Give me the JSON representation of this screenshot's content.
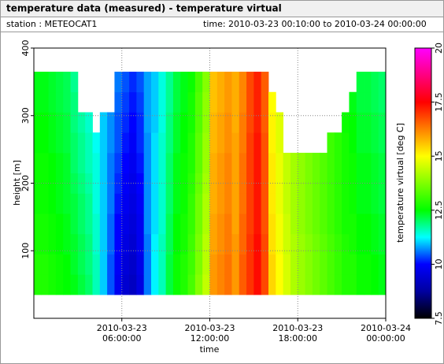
{
  "chart_data": {
    "type": "heatmap",
    "title": "temperature data (measured) - temperature virtual",
    "station": "station : METEOCAT1",
    "time_range": "time: 2010-03-23 00:10:00 to 2010-03-24 00:00:00",
    "x_label": "time",
    "y_label": "height [m]",
    "colorbar_label": "temperature virtual [deg C]",
    "xlim": [
      "2010-03-23 00:00:00",
      "2010-03-24 00:00:00"
    ],
    "xticks": [
      "2010-03-23 06:00:00",
      "2010-03-23 12:00:00",
      "2010-03-23 18:00:00",
      "2010-03-24 00:00:00"
    ],
    "ylim": [
      0,
      400
    ],
    "yticks": [
      100,
      200,
      300,
      400
    ],
    "grid": true,
    "clim": [
      7.5,
      20
    ],
    "cticks": [
      7.5,
      10,
      12.5,
      15,
      17.5,
      20
    ],
    "colorscale": [
      [
        7.5,
        "#000000"
      ],
      [
        8.75,
        "#0000a0"
      ],
      [
        10,
        "#0000ff"
      ],
      [
        11.25,
        "#00ffff"
      ],
      [
        12.5,
        "#00ff00"
      ],
      [
        15,
        "#ffff00"
      ],
      [
        16.25,
        "#ff8000"
      ],
      [
        17.5,
        "#ff0000"
      ],
      [
        20,
        "#ff00ff"
      ]
    ],
    "x": [
      "2010-03-23 00:15:00",
      "2010-03-23 00:45:00",
      "2010-03-23 01:15:00",
      "2010-03-23 01:45:00",
      "2010-03-23 02:15:00",
      "2010-03-23 02:45:00",
      "2010-03-23 03:15:00",
      "2010-03-23 03:45:00",
      "2010-03-23 04:15:00",
      "2010-03-23 04:45:00",
      "2010-03-23 05:15:00",
      "2010-03-23 05:45:00",
      "2010-03-23 06:15:00",
      "2010-03-23 06:45:00",
      "2010-03-23 07:15:00",
      "2010-03-23 07:45:00",
      "2010-03-23 08:15:00",
      "2010-03-23 08:45:00",
      "2010-03-23 09:15:00",
      "2010-03-23 09:45:00",
      "2010-03-23 10:15:00",
      "2010-03-23 10:45:00",
      "2010-03-23 11:15:00",
      "2010-03-23 11:45:00",
      "2010-03-23 12:15:00",
      "2010-03-23 12:45:00",
      "2010-03-23 13:15:00",
      "2010-03-23 13:45:00",
      "2010-03-23 14:15:00",
      "2010-03-23 14:45:00",
      "2010-03-23 15:15:00",
      "2010-03-23 15:45:00",
      "2010-03-23 16:15:00",
      "2010-03-23 16:45:00",
      "2010-03-23 17:15:00",
      "2010-03-23 17:45:00",
      "2010-03-23 18:15:00",
      "2010-03-23 18:45:00",
      "2010-03-23 19:15:00",
      "2010-03-23 19:45:00",
      "2010-03-23 20:15:00",
      "2010-03-23 20:45:00",
      "2010-03-23 21:15:00",
      "2010-03-23 21:45:00",
      "2010-03-23 22:15:00",
      "2010-03-23 22:45:00",
      "2010-03-23 23:15:00",
      "2010-03-23 23:45:00"
    ],
    "y": [
      50,
      80,
      110,
      140,
      170,
      200,
      230,
      260,
      290,
      320,
      350
    ],
    "z": [
      [
        12.8,
        12.8,
        12.7,
        12.7,
        12.6,
        12.6,
        12.6,
        12.5,
        12.5,
        12.4,
        12.4
      ],
      [
        12.8,
        12.8,
        12.7,
        12.7,
        12.6,
        12.6,
        12.6,
        12.5,
        12.5,
        12.4,
        12.4
      ],
      [
        12.7,
        12.7,
        12.6,
        12.6,
        12.5,
        12.5,
        12.5,
        12.4,
        12.4,
        12.3,
        12.3
      ],
      [
        12.6,
        12.6,
        12.5,
        12.5,
        12.4,
        12.4,
        12.4,
        12.3,
        12.3,
        12.2,
        12.2
      ],
      [
        12.5,
        12.5,
        12.4,
        12.4,
        12.3,
        12.3,
        12.3,
        12.2,
        12.2,
        12.1,
        12.1
      ],
      [
        12.4,
        12.3,
        12.3,
        12.2,
        12.2,
        12.1,
        12.0,
        12.0,
        11.9,
        11.9,
        11.8
      ],
      [
        12.2,
        12.1,
        12.1,
        12.0,
        12.0,
        11.9,
        11.8,
        11.8,
        11.7,
        null,
        null
      ],
      [
        12.0,
        11.9,
        11.9,
        11.8,
        11.8,
        11.7,
        11.6,
        11.6,
        11.5,
        null,
        null
      ],
      [
        11.6,
        11.6,
        11.5,
        11.5,
        11.4,
        11.4,
        11.4,
        11.3,
        null,
        null,
        null
      ],
      [
        11.0,
        11.0,
        11.0,
        11.0,
        11.0,
        11.0,
        11.0,
        11.0,
        11.0,
        null,
        null
      ],
      [
        10.4,
        10.4,
        10.5,
        10.5,
        10.6,
        10.6,
        10.6,
        10.7,
        10.7,
        null,
        null
      ],
      [
        9.8,
        9.9,
        10.0,
        10.0,
        10.1,
        10.2,
        10.3,
        10.4,
        10.4,
        10.5,
        10.6
      ],
      [
        9.4,
        9.5,
        9.6,
        9.7,
        9.8,
        9.9,
        10.0,
        10.1,
        10.2,
        10.3,
        10.4
      ],
      [
        9.2,
        9.3,
        9.4,
        9.5,
        9.6,
        9.7,
        9.8,
        9.9,
        10.0,
        10.1,
        10.2
      ],
      [
        9.6,
        9.7,
        9.8,
        9.8,
        9.9,
        10.0,
        10.1,
        10.2,
        10.2,
        10.3,
        10.4
      ],
      [
        10.6,
        10.6,
        10.6,
        10.7,
        10.7,
        10.7,
        10.7,
        10.7,
        10.8,
        10.8,
        10.8
      ],
      [
        11.2,
        11.2,
        11.2,
        11.1,
        11.1,
        11.1,
        11.1,
        11.1,
        11.0,
        11.0,
        11.0
      ],
      [
        11.6,
        11.6,
        11.6,
        11.5,
        11.5,
        11.5,
        11.5,
        11.5,
        11.4,
        11.4,
        11.4
      ],
      [
        12.2,
        12.2,
        12.1,
        12.1,
        12.0,
        12.0,
        12.0,
        11.9,
        11.9,
        11.8,
        11.8
      ],
      [
        12.6,
        12.6,
        12.5,
        12.5,
        12.4,
        12.4,
        12.4,
        12.3,
        12.3,
        12.2,
        12.2
      ],
      [
        12.8,
        12.8,
        12.7,
        12.7,
        12.6,
        12.6,
        12.6,
        12.5,
        12.5,
        12.4,
        12.4
      ],
      [
        13.2,
        13.1,
        13.1,
        13.0,
        13.0,
        12.9,
        12.8,
        12.8,
        12.7,
        12.7,
        12.6
      ],
      [
        13.8,
        13.7,
        13.7,
        13.6,
        13.6,
        13.5,
        13.4,
        13.4,
        13.3,
        13.3,
        13.2
      ],
      [
        14.4,
        14.3,
        14.3,
        14.2,
        14.2,
        14.1,
        14.0,
        14.0,
        13.9,
        13.9,
        13.8
      ],
      [
        16.0,
        16.0,
        15.9,
        15.9,
        15.8,
        15.8,
        15.8,
        15.7,
        15.7,
        15.6,
        15.6
      ],
      [
        16.2,
        16.2,
        16.1,
        16.1,
        16.0,
        16.0,
        16.0,
        15.9,
        15.9,
        15.8,
        15.8
      ],
      [
        16.4,
        16.4,
        16.3,
        16.3,
        16.2,
        16.2,
        16.2,
        16.1,
        16.1,
        16.0,
        16.0
      ],
      [
        16.0,
        16.0,
        16.0,
        15.9,
        15.9,
        15.9,
        15.9,
        15.9,
        15.8,
        15.8,
        15.8
      ],
      [
        16.6,
        16.6,
        16.5,
        16.5,
        16.4,
        16.4,
        16.4,
        16.3,
        16.3,
        16.2,
        16.2
      ],
      [
        17.0,
        17.0,
        17.0,
        16.9,
        16.9,
        16.9,
        16.9,
        16.9,
        16.8,
        16.8,
        16.8
      ],
      [
        17.4,
        17.4,
        17.4,
        17.3,
        17.3,
        17.3,
        17.3,
        17.3,
        17.2,
        17.2,
        17.2
      ],
      [
        16.8,
        16.8,
        16.8,
        16.7,
        16.7,
        16.7,
        16.7,
        16.7,
        16.6,
        16.6,
        16.6
      ],
      [
        15.4,
        15.4,
        15.3,
        15.3,
        15.2,
        15.2,
        15.2,
        15.1,
        15.1,
        15.0,
        null
      ],
      [
        15.0,
        15.0,
        14.9,
        14.9,
        14.8,
        14.8,
        14.8,
        14.7,
        14.7,
        null,
        null
      ],
      [
        14.6,
        14.6,
        14.5,
        14.5,
        14.4,
        14.4,
        14.4,
        null,
        null,
        null,
        null
      ],
      [
        14.2,
        14.2,
        14.2,
        14.1,
        14.1,
        14.1,
        14.1,
        null,
        null,
        null,
        null
      ],
      [
        14.0,
        14.0,
        14.0,
        13.9,
        13.9,
        13.9,
        13.9,
        null,
        null,
        null,
        null
      ],
      [
        13.8,
        13.8,
        13.8,
        13.7,
        13.7,
        13.7,
        13.7,
        null,
        null,
        null,
        null
      ],
      [
        13.6,
        13.6,
        13.6,
        13.5,
        13.5,
        13.5,
        13.5,
        null,
        null,
        null,
        null
      ],
      [
        13.4,
        13.4,
        13.4,
        13.3,
        13.3,
        13.3,
        13.3,
        null,
        null,
        null,
        null
      ],
      [
        13.2,
        13.2,
        13.2,
        13.1,
        13.1,
        13.1,
        13.1,
        13.1,
        null,
        null,
        null
      ],
      [
        13.0,
        13.0,
        13.0,
        12.9,
        12.9,
        12.9,
        12.9,
        12.9,
        null,
        null,
        null
      ],
      [
        12.8,
        12.8,
        12.8,
        12.7,
        12.7,
        12.7,
        12.7,
        12.7,
        12.6,
        null,
        null
      ],
      [
        12.8,
        12.8,
        12.7,
        12.7,
        12.6,
        12.6,
        12.6,
        12.5,
        12.5,
        12.4,
        null
      ],
      [
        12.6,
        12.6,
        12.5,
        12.5,
        12.4,
        12.4,
        12.4,
        12.3,
        12.3,
        12.2,
        12.2
      ],
      [
        12.6,
        12.6,
        12.5,
        12.5,
        12.4,
        12.4,
        12.4,
        12.3,
        12.3,
        12.2,
        12.2
      ],
      [
        12.5,
        12.5,
        12.4,
        12.4,
        12.3,
        12.3,
        12.3,
        12.2,
        12.2,
        12.1,
        12.1
      ],
      [
        12.4,
        12.4,
        12.3,
        12.3,
        12.2,
        12.2,
        12.2,
        12.1,
        12.1,
        12.0,
        12.0
      ]
    ]
  }
}
